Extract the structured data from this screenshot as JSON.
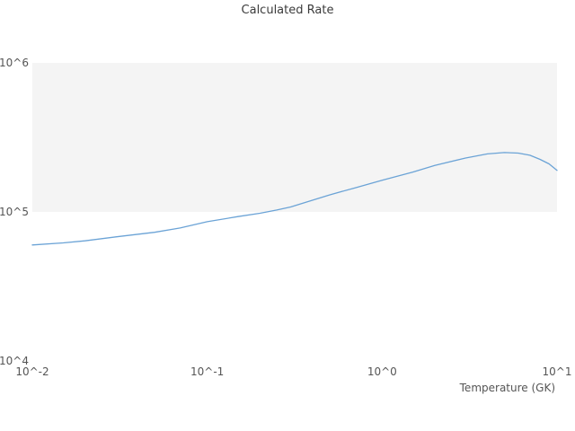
{
  "chart": {
    "title": "Calculated Rate",
    "x_axis_label": "Temperature (GK)"
  },
  "chart_data": {
    "type": "line",
    "title": "Calculated Rate",
    "xlabel": "Temperature (GK)",
    "ylabel": "",
    "x_scale": "log",
    "y_scale": "log",
    "xlim": [
      0.01,
      10
    ],
    "ylim": [
      10000,
      1000000
    ],
    "grid": false,
    "legend": "none",
    "x_ticks": [
      {
        "value": 0.01,
        "label": "10^-2"
      },
      {
        "value": 0.1,
        "label": "10^-1"
      },
      {
        "value": 1,
        "label": "10^0"
      },
      {
        "value": 10,
        "label": "10^1"
      }
    ],
    "y_ticks": [
      {
        "value": 10000,
        "label": "10^4"
      },
      {
        "value": 100000,
        "label": "10^5"
      },
      {
        "value": 1000000,
        "label": "10^6"
      }
    ],
    "band": {
      "y_from": 100000,
      "y_to": 1000000,
      "color": "#f4f4f4"
    },
    "series": [
      {
        "name": "calculated-rate",
        "color": "#6ba3d6",
        "x": [
          0.01,
          0.015,
          0.02,
          0.03,
          0.05,
          0.07,
          0.1,
          0.15,
          0.2,
          0.25,
          0.3,
          0.5,
          0.7,
          1.0,
          1.5,
          2.0,
          3.0,
          4.0,
          5.0,
          6.0,
          7.0,
          8.0,
          9.0,
          10.0
        ],
        "y": [
          60000,
          62000,
          64000,
          68000,
          73000,
          78000,
          86000,
          93000,
          98000,
          103000,
          108000,
          130000,
          145000,
          163000,
          185000,
          205000,
          230000,
          245000,
          250000,
          248000,
          240000,
          225000,
          210000,
          190000
        ]
      }
    ]
  }
}
